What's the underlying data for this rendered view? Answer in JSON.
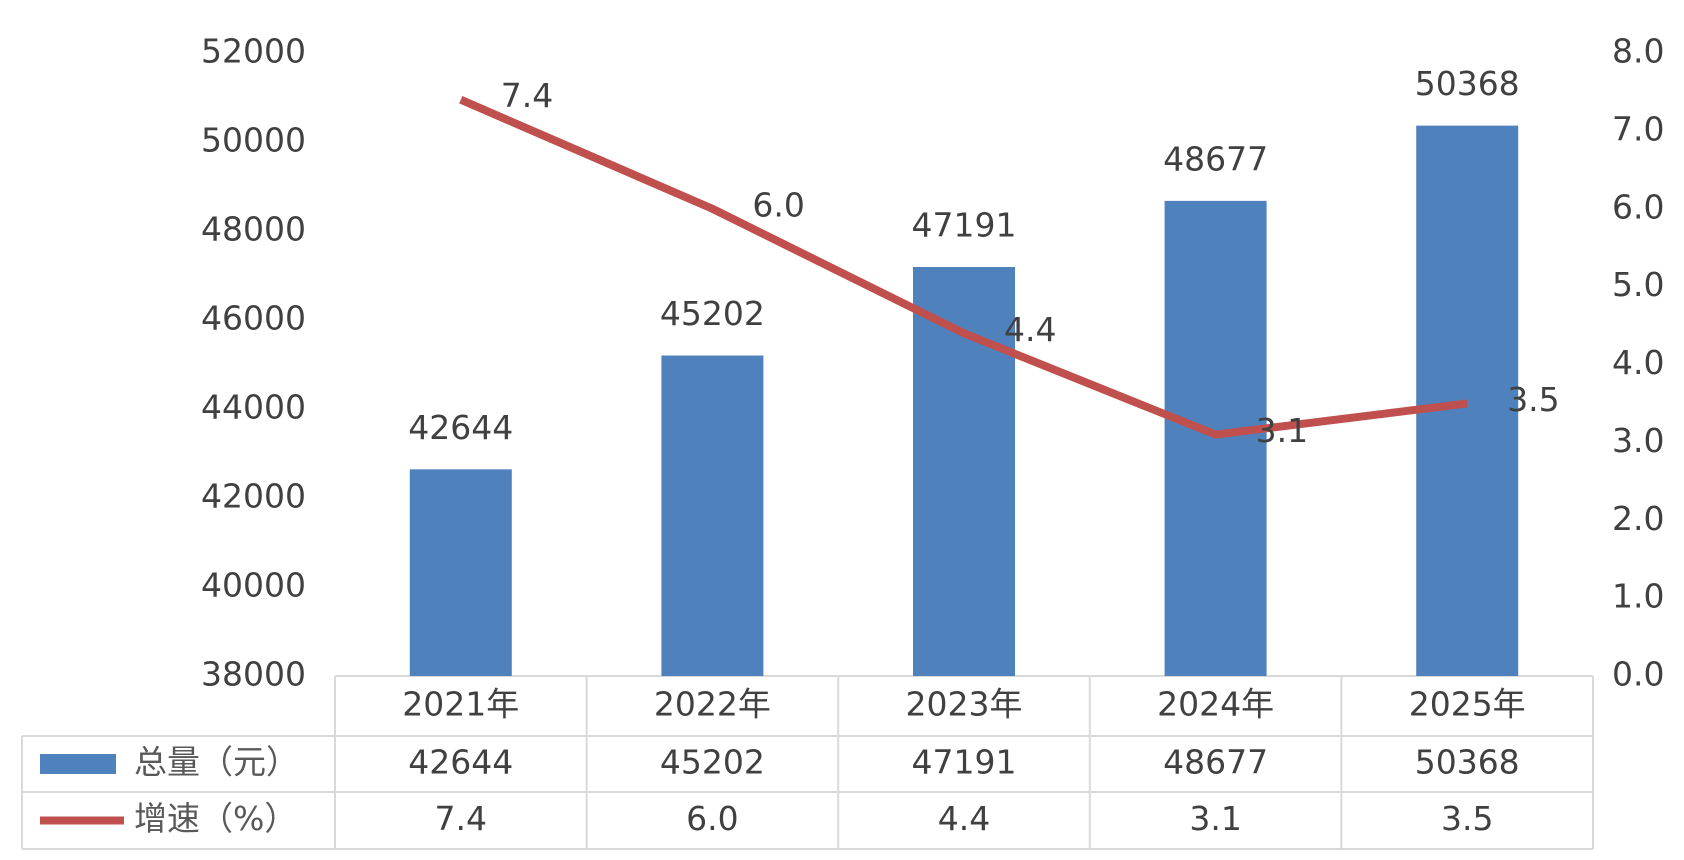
{
  "chart_data": {
    "type": "combo",
    "categories": [
      "2021年",
      "2022年",
      "2023年",
      "2024年",
      "2025年"
    ],
    "series": [
      {
        "name": "总量（元）",
        "type": "bar",
        "color": "#4f81bd",
        "values": [
          42644,
          45202,
          47191,
          48677,
          50368
        ]
      },
      {
        "name": "增速（%）",
        "type": "line",
        "axis": "y2",
        "color": "#c0504d",
        "values": [
          7.4,
          6.0,
          4.4,
          3.1,
          3.5
        ],
        "value_labels": [
          "7.4",
          "6.0",
          "4.4",
          "3.1",
          "3.5"
        ]
      }
    ],
    "ylim": [
      38000,
      52000
    ],
    "yticks": [
      38000,
      40000,
      42000,
      44000,
      46000,
      48000,
      50000,
      52000
    ],
    "y2lim": [
      0,
      8
    ],
    "y2ticks": [
      {
        "value": 0,
        "label": "0.0"
      },
      {
        "value": 1,
        "label": "1.0"
      },
      {
        "value": 2,
        "label": "2.0"
      },
      {
        "value": 3,
        "label": "3.0"
      },
      {
        "value": 4,
        "label": "4.0"
      },
      {
        "value": 5,
        "label": "5.0"
      },
      {
        "value": 6,
        "label": "6.0"
      },
      {
        "value": 7,
        "label": "7.0"
      },
      {
        "value": 8,
        "label": "8.0"
      }
    ],
    "grid": false,
    "legend": "data-table"
  }
}
